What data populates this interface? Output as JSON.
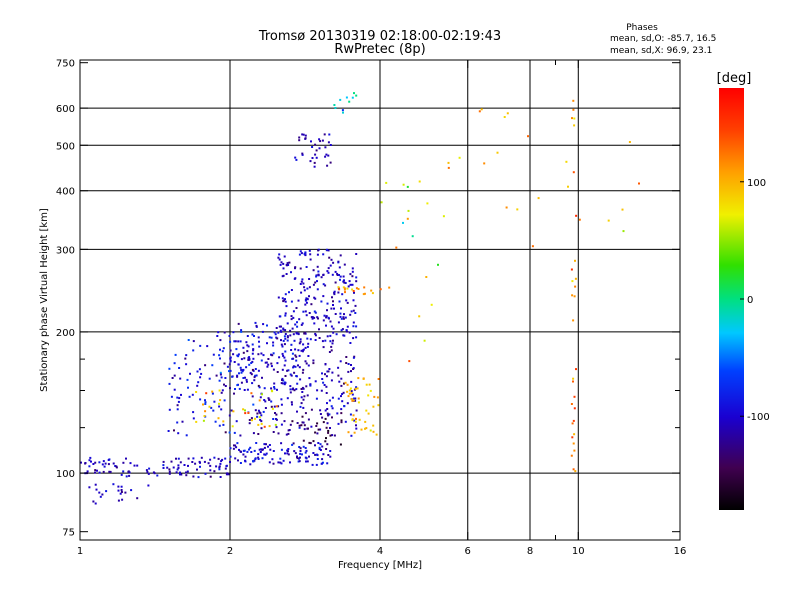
{
  "chart_data": {
    "type": "scatter",
    "title": "Tromsø 20130319 02:18:00-02:19:43",
    "subtitle": "RwPretec (8p)",
    "xlabel": "Frequency [MHz]",
    "ylabel": "Stationary phase Virtual Height [km]",
    "x_scale": "log",
    "y_scale": "log",
    "xlim": [
      1,
      16
    ],
    "ylim": [
      72,
      760
    ],
    "x_ticks": [
      1,
      2,
      4,
      6,
      8,
      10,
      16
    ],
    "x_tick_labels": [
      "1",
      "2",
      "4",
      "6",
      "8",
      "10",
      "16"
    ],
    "x_minor_ticks": [
      9
    ],
    "y_ticks": [
      75,
      100,
      200,
      300,
      400,
      500,
      600,
      750
    ],
    "y_tick_labels": [
      "75",
      "100",
      "200",
      "300",
      "400",
      "500",
      "600",
      "750"
    ],
    "y_minor_ticks": [
      125,
      150,
      175
    ],
    "grid_x": [
      2,
      4,
      6,
      8,
      10
    ],
    "grid_y": [
      100,
      200,
      300,
      400,
      500,
      600
    ],
    "stats": {
      "heading": "Phases",
      "line_o": "mean, sd,O: -85.7, 16.5",
      "line_x": "mean, sd,X:  96.9, 23.1"
    },
    "colorbar": {
      "label": "[deg]",
      "range": [
        -180,
        180
      ],
      "ticks": [
        100,
        0,
        -100
      ],
      "tick_labels": [
        "100",
        "0",
        "-100"
      ]
    },
    "point_groups": [
      {
        "name": "low-band",
        "f": [
          1.0,
          2.0
        ],
        "h": [
          98,
          108
        ],
        "n": 110,
        "phase": -105,
        "spread": 20
      },
      {
        "name": "low-band-ext",
        "f": [
          2.0,
          3.2
        ],
        "h": [
          104,
          116
        ],
        "n": 120,
        "phase": -100,
        "spread": 25
      },
      {
        "name": "e-sporadic",
        "f": [
          1.0,
          1.4
        ],
        "h": [
          86,
          95
        ],
        "n": 22,
        "phase": -108,
        "spread": 20
      },
      {
        "name": "f1-lower",
        "f": [
          1.5,
          2.3
        ],
        "h": [
          120,
          200
        ],
        "n": 120,
        "phase": -95,
        "spread": 35
      },
      {
        "name": "f1-upper",
        "f": [
          1.9,
          2.9
        ],
        "h": [
          150,
          210
        ],
        "n": 150,
        "phase": -100,
        "spread": 25
      },
      {
        "name": "f2-body",
        "f": [
          2.5,
          3.6
        ],
        "h": [
          180,
          300
        ],
        "n": 260,
        "phase": -105,
        "spread": 20
      },
      {
        "name": "mid-cloud",
        "f": [
          2.2,
          3.6
        ],
        "h": [
          120,
          180
        ],
        "n": 190,
        "phase": -110,
        "spread": 25
      },
      {
        "name": "x-mode-orange",
        "f": [
          3.4,
          4.0
        ],
        "h": [
          120,
          160
        ],
        "n": 45,
        "phase": 100,
        "spread": 25
      },
      {
        "name": "x-mode-mixed",
        "f": [
          1.7,
          2.5
        ],
        "h": [
          125,
          150
        ],
        "n": 35,
        "phase": 90,
        "spread": 45
      },
      {
        "name": "x-mode-high",
        "f": [
          3.3,
          4.2
        ],
        "h": [
          240,
          250
        ],
        "n": 18,
        "phase": 110,
        "spread": 30
      },
      {
        "name": "f-cusp-high",
        "f": [
          2.7,
          3.2
        ],
        "h": [
          450,
          530
        ],
        "n": 35,
        "phase": -110,
        "spread": 20
      },
      {
        "name": "f-cusp-top",
        "f": [
          3.2,
          3.6
        ],
        "h": [
          580,
          660
        ],
        "n": 10,
        "phase": -20,
        "spread": 40
      },
      {
        "name": "violet-streak",
        "f": [
          2.6,
          3.4
        ],
        "h": [
          115,
          135
        ],
        "n": 25,
        "phase": -150,
        "spread": 15
      },
      {
        "name": "vertical-10mhz",
        "f": [
          9.7,
          9.9
        ],
        "h": [
          100,
          650
        ],
        "n": 30,
        "phase": 120,
        "spread": 40
      },
      {
        "name": "sparse-high",
        "f": [
          4.5,
          14.0
        ],
        "h": [
          300,
          650
        ],
        "n": 25,
        "phase": 100,
        "spread": 40
      },
      {
        "name": "sparse-mid",
        "f": [
          4.0,
          5.5
        ],
        "h": [
          160,
          420
        ],
        "n": 15,
        "phase": 60,
        "spread": 80
      }
    ]
  }
}
